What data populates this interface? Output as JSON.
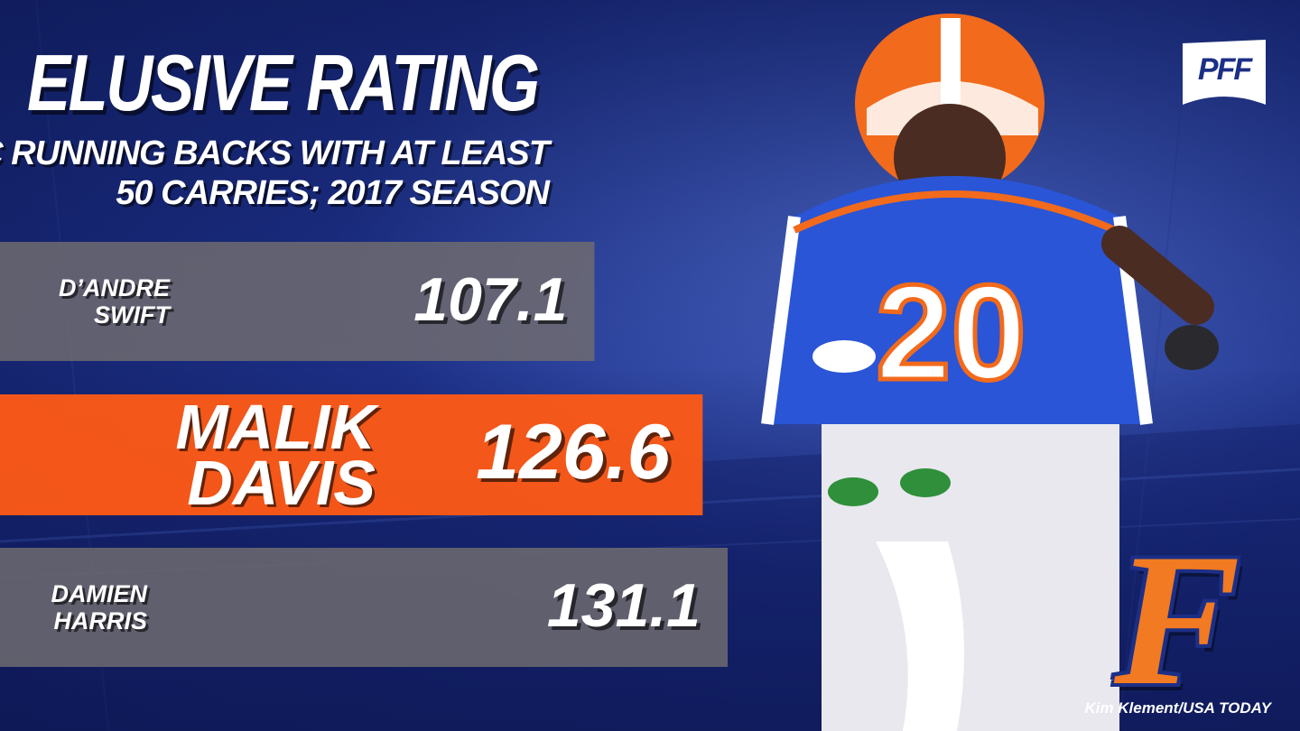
{
  "graphic": {
    "logo_text": "PFF",
    "team_logo_letter": "F",
    "photo_credit": "Kim Klement/USA TODAY",
    "colors": {
      "background": "#1c2f86",
      "bar_gray": "#6e6b70",
      "bar_highlight": "#ff5a14",
      "text": "#ffffff"
    }
  },
  "chart_data": {
    "type": "bar",
    "orientation": "horizontal",
    "title": "ELUSIVE RATING",
    "subtitle_lines": [
      "SEC RUNNING BACKS WITH AT LEAST",
      "50 CARRIES; 2017 SEASON"
    ],
    "xlabel": "",
    "ylabel": "",
    "xlim": [
      0,
      131.1
    ],
    "grid": false,
    "legend": "none",
    "categories": [
      [
        "D’ANDRE",
        "SWIFT"
      ],
      [
        "MALIK",
        "DAVIS"
      ],
      [
        "DAMIEN",
        "HARRIS"
      ]
    ],
    "values": [
      107.1,
      126.6,
      131.1
    ],
    "value_labels": [
      "107.1",
      "126.6",
      "131.1"
    ],
    "highlight_index": 1
  }
}
